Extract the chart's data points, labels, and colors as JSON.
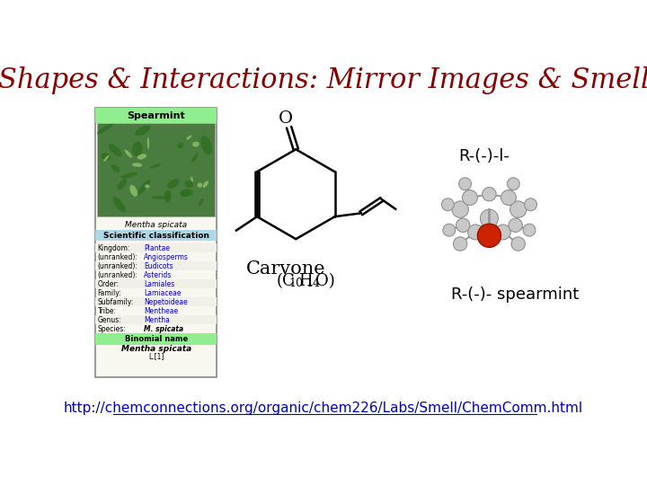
{
  "title": "Shapes & Interactions: Mirror Images & Smell",
  "title_color": "#8B0000",
  "title_fontsize": 22,
  "background_color": "#FFFFFF",
  "label_r_minus_l": "R-(-)-l-",
  "label_r_minus_spearmint": "R-(-)- spearmint",
  "url_text": "http://chemconnections.org/organic/chem226/Labs/Smell/ChemComm.html",
  "url_color": "#0000CC",
  "label_color": "#000000",
  "label_fontsize": 13,
  "carvone_label": "Carvone",
  "sub10": "10",
  "sub14": "14"
}
